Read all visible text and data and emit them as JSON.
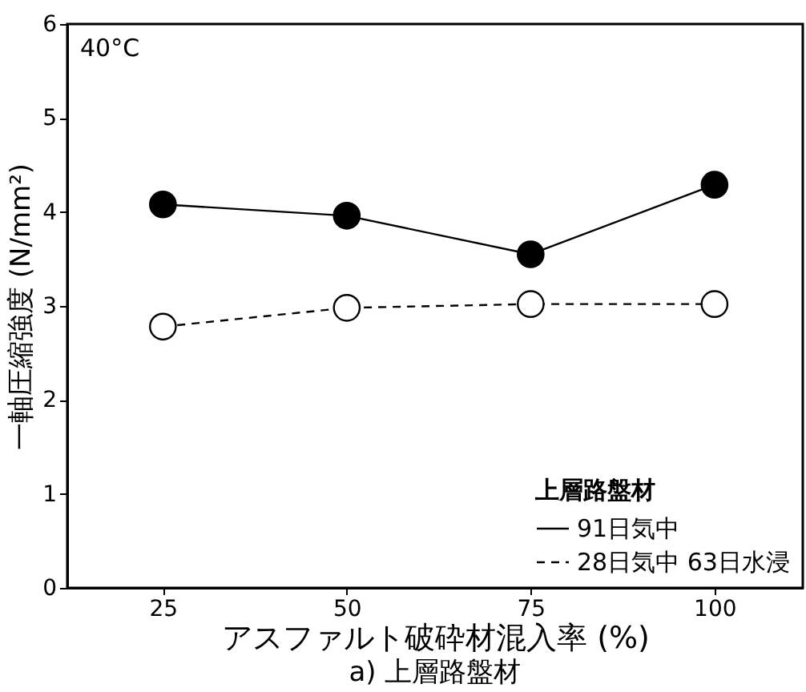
{
  "chart_data": {
    "type": "line",
    "xlabel": "アスファルト破砕材混入率 (%)",
    "ylabel": "一軸圧縮強度 (N/mm²)",
    "legend_title": "上層路盤材",
    "x": [
      25,
      50,
      75,
      100
    ],
    "series": [
      {
        "name": "91日気中",
        "color": "#000000",
        "values": [
          4.08,
          3.96,
          3.55,
          4.29
        ],
        "line_style": "solid"
      },
      {
        "name": "28日気中 63日水浸",
        "color": "#000000",
        "values": [
          2.78,
          2.98,
          3.02,
          3.02
        ],
        "line_style": "dashed"
      }
    ],
    "xlim": [
      12,
      112
    ],
    "xticks": [
      25,
      50,
      75,
      100
    ],
    "ylim": [
      0,
      6
    ],
    "yticks": [
      0,
      1,
      2,
      3,
      4,
      5,
      6
    ],
    "marker": "circle",
    "grid": false,
    "legend": "bottom right",
    "annotations": [
      "40°C",
      "a) 上層路盤材"
    ]
  }
}
